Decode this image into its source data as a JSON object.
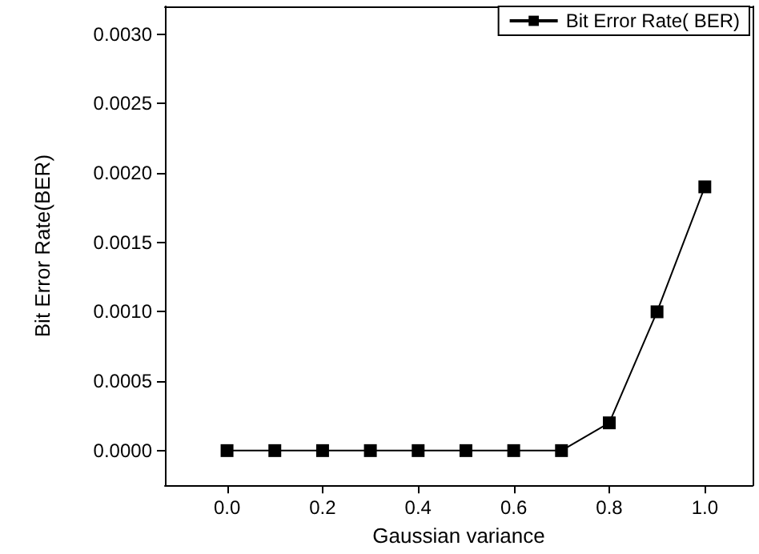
{
  "chart_data": {
    "type": "line",
    "xlabel": "Gaussian variance",
    "ylabel": "Bit Error Rate(BER)",
    "x": [
      0.0,
      0.1,
      0.2,
      0.3,
      0.4,
      0.5,
      0.6,
      0.7,
      0.8,
      0.9,
      1.0
    ],
    "series": [
      {
        "name": "Bit Error Rate( BER)",
        "color": "#000000",
        "values": [
          0,
          0,
          0,
          0,
          0,
          0,
          0,
          0,
          0.0002,
          0.001,
          0.0019
        ]
      }
    ],
    "xlim": [
      -0.13,
      1.1
    ],
    "xticks": [
      {
        "value": 0,
        "label": "0.0"
      },
      {
        "value": 0.2,
        "label": "0.2"
      },
      {
        "value": 0.4,
        "label": "0.4"
      },
      {
        "value": 0.6,
        "label": "0.6"
      },
      {
        "value": 0.8,
        "label": "0.8"
      },
      {
        "value": 1,
        "label": "1.0"
      }
    ],
    "ylim": [
      -0.00025,
      0.0032
    ],
    "yticks": [
      {
        "value": 0,
        "label": "0.0000"
      },
      {
        "value": 0.0005,
        "label": "0.0005"
      },
      {
        "value": 0.001,
        "label": "0.0010"
      },
      {
        "value": 0.0015,
        "label": "0.0015"
      },
      {
        "value": 0.002,
        "label": "0.0020"
      },
      {
        "value": 0.0025,
        "label": "0.0025"
      },
      {
        "value": 0.003,
        "label": "0.0030"
      }
    ],
    "legend": "top right",
    "marker": "square",
    "line_style": "solid",
    "grid": false
  }
}
